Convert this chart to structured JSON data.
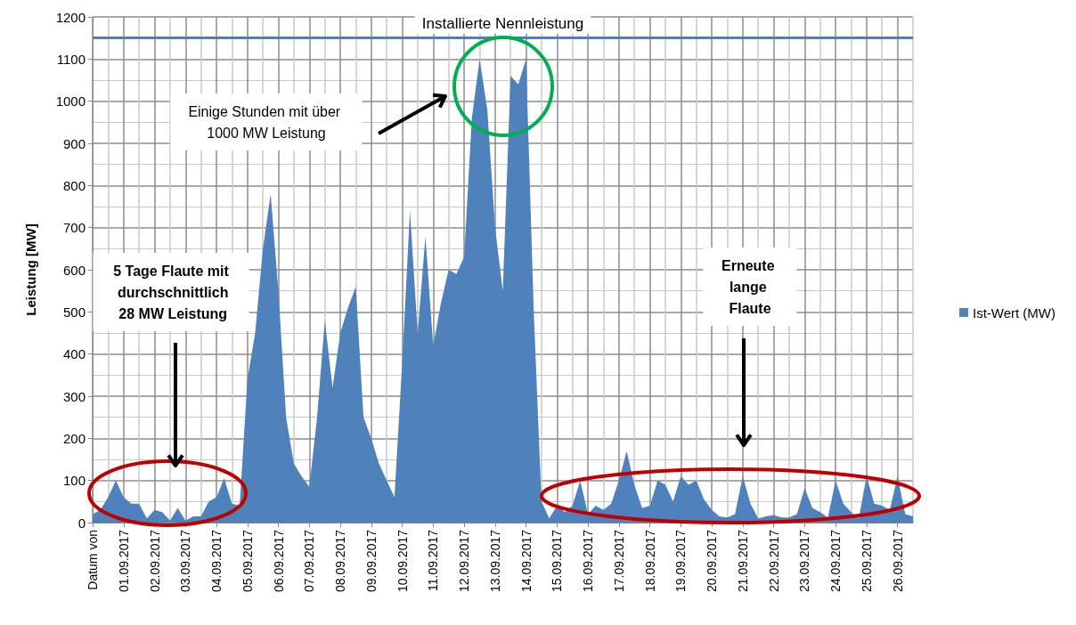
{
  "chart_data": {
    "type": "area",
    "ylabel": "Leistung [MW]",
    "categories": [
      "Datum von",
      null,
      null,
      null,
      "01.09.2017",
      null,
      null,
      null,
      "02.09.2017",
      null,
      null,
      null,
      "03.09.2017",
      null,
      null,
      null,
      "04.09.2017",
      null,
      null,
      null,
      "05.09.2017",
      null,
      null,
      null,
      "06.09.2017",
      null,
      null,
      null,
      "07.09.2017",
      null,
      null,
      null,
      "08.09.2017",
      null,
      null,
      null,
      "09.09.2017",
      null,
      null,
      null,
      "10.09.2017",
      null,
      null,
      null,
      "11.09.2017",
      null,
      null,
      null,
      "12.09.2017",
      null,
      null,
      null,
      "13.09.2017",
      null,
      null,
      null,
      "14.09.2017",
      null,
      null,
      null,
      "15.09.2017",
      null,
      null,
      null,
      "16.09.2017",
      null,
      null,
      null,
      "17.09.2017",
      null,
      null,
      null,
      "18.09.2017",
      null,
      null,
      null,
      "19.09.2017",
      null,
      null,
      null,
      "20.09.2017",
      null,
      null,
      null,
      "21.09.2017",
      null,
      null,
      null,
      "22.09.2017",
      null,
      null,
      null,
      "23.09.2017",
      null,
      null,
      null,
      "24.09.2017",
      null,
      null,
      null,
      "25.09.2017",
      null,
      null,
      null,
      "26.09.2017",
      null,
      null
    ],
    "ylim": [
      0,
      1200
    ],
    "yticks": [
      0,
      100,
      200,
      300,
      400,
      500,
      600,
      700,
      800,
      900,
      1000,
      1100,
      1200
    ],
    "grid": true,
    "legend": "right",
    "series": [
      {
        "name": "Ist-Wert (MW)",
        "color": "#4f81bd",
        "values": [
          20,
          30,
          60,
          100,
          60,
          45,
          45,
          10,
          30,
          25,
          5,
          35,
          5,
          15,
          15,
          50,
          60,
          105,
          45,
          40,
          340,
          450,
          650,
          780,
          550,
          250,
          140,
          110,
          85,
          250,
          480,
          320,
          450,
          510,
          560,
          250,
          200,
          140,
          100,
          60,
          380,
          740,
          450,
          680,
          420,
          520,
          600,
          590,
          630,
          960,
          1100,
          980,
          700,
          550,
          1060,
          1040,
          1100,
          500,
          50,
          10,
          40,
          25,
          40,
          100,
          20,
          40,
          30,
          45,
          100,
          170,
          90,
          35,
          40,
          100,
          90,
          50,
          110,
          90,
          100,
          55,
          30,
          15,
          12,
          20,
          110,
          45,
          10,
          15,
          18,
          12,
          12,
          20,
          82,
          35,
          25,
          12,
          100,
          45,
          25,
          10,
          110,
          45,
          40,
          30,
          110,
          20,
          15
        ]
      }
    ],
    "ref_lines": [
      {
        "axis": "y",
        "value": 1150,
        "label": "Installierte Nennleistung",
        "color": "#4f81bd"
      }
    ],
    "annotations": [
      "Einige Stunden mit über 1000 MW Leistung",
      "5 Tage Flaute mit durchschnittlich 28 MW Leistung",
      "Erneute lange Flaute"
    ]
  }
}
